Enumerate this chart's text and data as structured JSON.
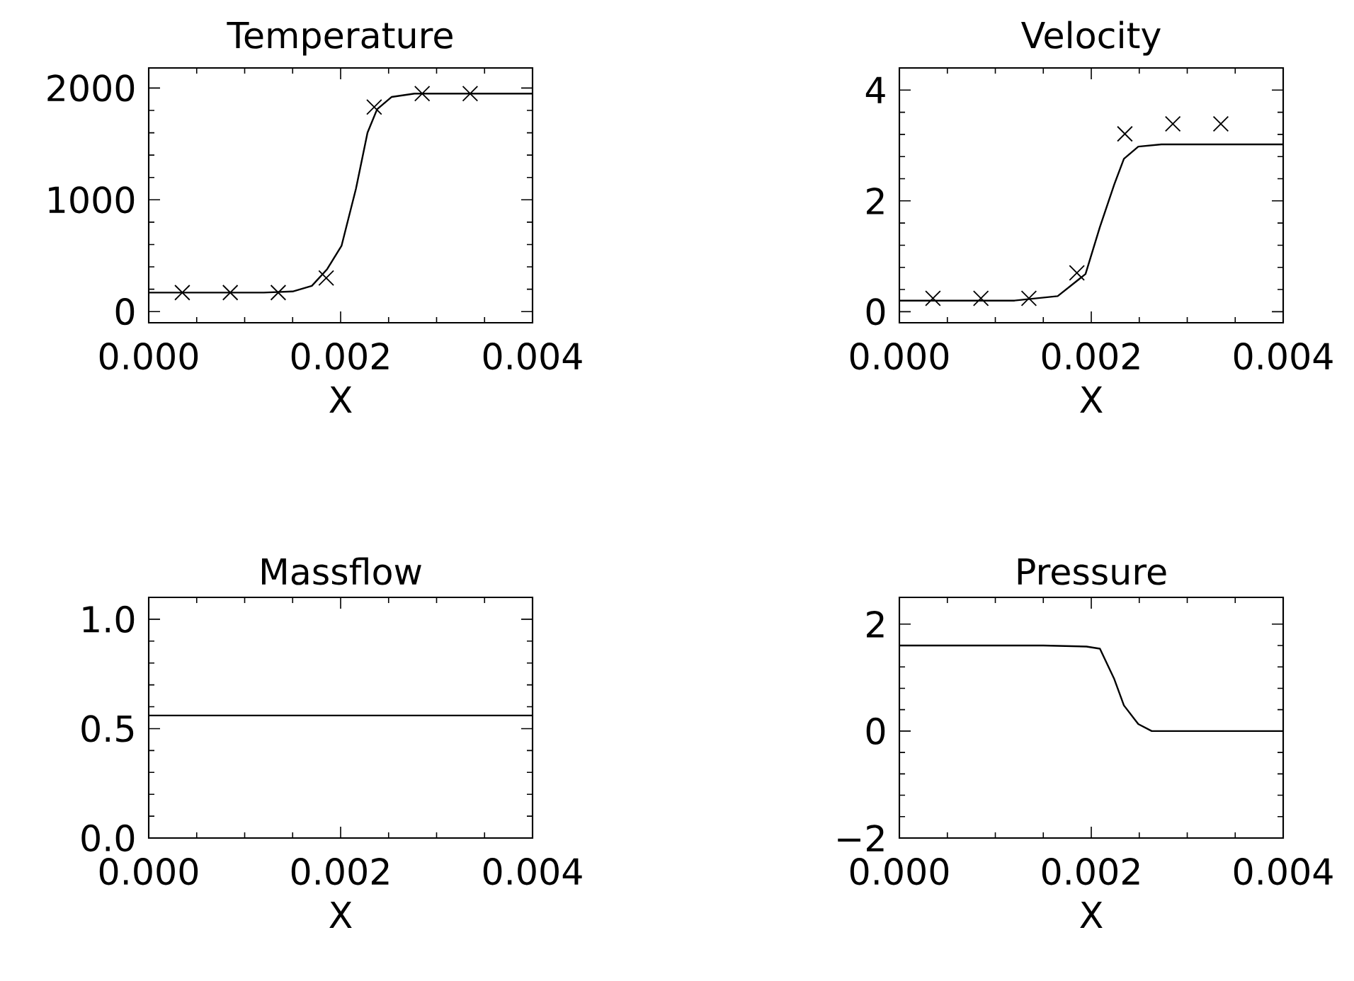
{
  "chart_data": [
    {
      "type": "line",
      "title": "Temperature",
      "xlabel": "X",
      "xlim": [
        0,
        0.004
      ],
      "xticks": [
        {
          "value": 0,
          "label": "0.000"
        },
        {
          "value": 0.002,
          "label": "0.002"
        },
        {
          "value": 0.004,
          "label": "0.004"
        }
      ],
      "ylim": [
        -100,
        2180
      ],
      "yticks": [
        0,
        1000,
        2000
      ],
      "series": [
        {
          "color": "#000000",
          "x": [
            0,
            0.0012,
            0.0015,
            0.0017,
            0.00186,
            0.00201,
            0.00216,
            0.00228,
            0.00238,
            0.00253,
            0.00277,
            0.004
          ],
          "values": [
            170,
            170,
            180,
            230,
            380,
            590,
            1100,
            1600,
            1810,
            1920,
            1950,
            1950
          ]
        },
        {
          "type": "scatter",
          "marker": "cross",
          "color": "#000000",
          "x": [
            0.00035,
            0.00085,
            0.00135,
            0.00185,
            0.00235,
            0.00285,
            0.00335
          ],
          "values": [
            170,
            170,
            170,
            300,
            1830,
            1950,
            1950
          ]
        }
      ]
    },
    {
      "type": "line",
      "title": "Velocity",
      "xlabel": "X",
      "xlim": [
        0,
        0.004
      ],
      "xticks": [
        {
          "value": 0,
          "label": "0.000"
        },
        {
          "value": 0.002,
          "label": "0.002"
        },
        {
          "value": 0.004,
          "label": "0.004"
        }
      ],
      "ylim": [
        -0.2,
        4.4
      ],
      "yticks": [
        0,
        2,
        4
      ],
      "series": [
        {
          "color": "#000000",
          "x": [
            0,
            0.0012,
            0.00165,
            0.00194,
            0.00209,
            0.00224,
            0.00234,
            0.00249,
            0.00273,
            0.004
          ],
          "values": [
            0.2,
            0.2,
            0.28,
            0.68,
            1.53,
            2.3,
            2.76,
            2.98,
            3.02,
            3.02
          ]
        },
        {
          "type": "scatter",
          "marker": "cross",
          "color": "#000000",
          "x": [
            0.00035,
            0.00085,
            0.00135,
            0.00185,
            0.00235,
            0.00285,
            0.00335
          ],
          "values": [
            0.24,
            0.24,
            0.24,
            0.7,
            3.21,
            3.39,
            3.39
          ]
        }
      ]
    },
    {
      "type": "line",
      "title": "Massflow",
      "xlabel": "X",
      "xlim": [
        0,
        0.004
      ],
      "xticks": [
        {
          "value": 0,
          "label": "0.000"
        },
        {
          "value": 0.002,
          "label": "0.002"
        },
        {
          "value": 0.004,
          "label": "0.004"
        }
      ],
      "ylim": [
        0,
        1.1
      ],
      "yticks": [
        {
          "value": 0,
          "label": "0.0"
        },
        {
          "value": 0.5,
          "label": "0.5"
        },
        {
          "value": 1,
          "label": "1.0"
        }
      ],
      "series": [
        {
          "color": "#000000",
          "x": [
            0,
            0.004
          ],
          "values": [
            0.56,
            0.56
          ]
        }
      ]
    },
    {
      "type": "line",
      "title": "Pressure",
      "xlabel": "X",
      "xlim": [
        0,
        0.004
      ],
      "xticks": [
        {
          "value": 0,
          "label": "0.000"
        },
        {
          "value": 0.002,
          "label": "0.002"
        },
        {
          "value": 0.004,
          "label": "0.004"
        }
      ],
      "ylim": [
        -2,
        2.5
      ],
      "yticks": [
        {
          "value": -2,
          "label": "−2"
        },
        0,
        2
      ],
      "series": [
        {
          "color": "#000000",
          "x": [
            0,
            0.0015,
            0.00195,
            0.00209,
            0.00224,
            0.00234,
            0.00249,
            0.00263,
            0.004
          ],
          "values": [
            1.6,
            1.6,
            1.58,
            1.54,
            0.97,
            0.48,
            0.13,
            0,
            0
          ]
        }
      ]
    }
  ]
}
